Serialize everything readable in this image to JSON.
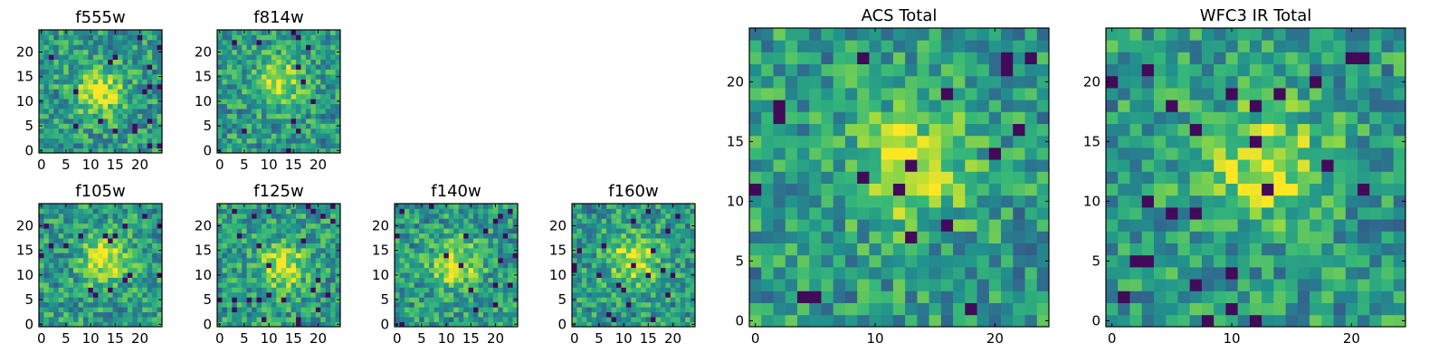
{
  "chart_data": [
    {
      "type": "heatmap",
      "title": "f555w",
      "xlim": [
        0,
        24
      ],
      "ylim": [
        0,
        24
      ],
      "xticks": [
        "0",
        "5",
        "10",
        "15",
        "20"
      ],
      "yticks": [
        "0",
        "5",
        "10",
        "15",
        "20"
      ],
      "grid": false,
      "colormap": "viridis",
      "source_center": [
        12,
        12
      ]
    },
    {
      "type": "heatmap",
      "title": "f814w",
      "xlim": [
        0,
        24
      ],
      "ylim": [
        0,
        24
      ],
      "xticks": [
        "0",
        "5",
        "10",
        "15",
        "20"
      ],
      "yticks": [
        "0",
        "5",
        "10",
        "15",
        "20"
      ],
      "grid": false,
      "colormap": "viridis",
      "source_center": [
        12,
        14
      ]
    },
    {
      "type": "heatmap",
      "title": "f105w",
      "xlim": [
        0,
        24
      ],
      "ylim": [
        0,
        24
      ],
      "xticks": [
        "0",
        "5",
        "10",
        "15",
        "20"
      ],
      "yticks": [
        "0",
        "5",
        "10",
        "15",
        "20"
      ],
      "grid": false,
      "colormap": "viridis",
      "source_center": [
        13,
        13
      ]
    },
    {
      "type": "heatmap",
      "title": "f125w",
      "xlim": [
        0,
        24
      ],
      "ylim": [
        0,
        24
      ],
      "xticks": [
        "0",
        "5",
        "10",
        "15",
        "20"
      ],
      "yticks": [
        "0",
        "5",
        "10",
        "15",
        "20"
      ],
      "grid": false,
      "colormap": "viridis",
      "source_center": [
        13,
        12
      ]
    },
    {
      "type": "heatmap",
      "title": "f140w",
      "xlim": [
        0,
        24
      ],
      "ylim": [
        0,
        24
      ],
      "xticks": [
        "0",
        "5",
        "10",
        "15",
        "20"
      ],
      "yticks": [
        "0",
        "5",
        "10",
        "15",
        "20"
      ],
      "grid": false,
      "colormap": "viridis",
      "source_center": [
        12,
        12
      ]
    },
    {
      "type": "heatmap",
      "title": "f160w",
      "xlim": [
        0,
        24
      ],
      "ylim": [
        0,
        24
      ],
      "xticks": [
        "0",
        "5",
        "10",
        "15",
        "20"
      ],
      "yticks": [
        "0",
        "5",
        "10",
        "15",
        "20"
      ],
      "grid": false,
      "colormap": "viridis",
      "source_center": [
        12,
        13
      ]
    },
    {
      "type": "heatmap",
      "title": "ACS Total",
      "xlim": [
        0,
        24
      ],
      "ylim": [
        0,
        24
      ],
      "xticks": [
        "0",
        "10",
        "20"
      ],
      "yticks": [
        "0",
        "5",
        "10",
        "15",
        "20"
      ],
      "grid": false,
      "colormap": "viridis",
      "source_center": [
        13,
        13
      ]
    },
    {
      "type": "heatmap",
      "title": "WFC3 IR Total",
      "xlim": [
        0,
        24
      ],
      "ylim": [
        0,
        24
      ],
      "xticks": [
        "0",
        "10",
        "20"
      ],
      "yticks": [
        "0",
        "5",
        "10",
        "15",
        "20"
      ],
      "grid": false,
      "colormap": "viridis",
      "source_center": [
        13,
        13
      ]
    }
  ],
  "colors": {
    "viridis": [
      "#440154",
      "#31688e",
      "#21908d",
      "#35b779",
      "#8fd744",
      "#fde725"
    ]
  }
}
